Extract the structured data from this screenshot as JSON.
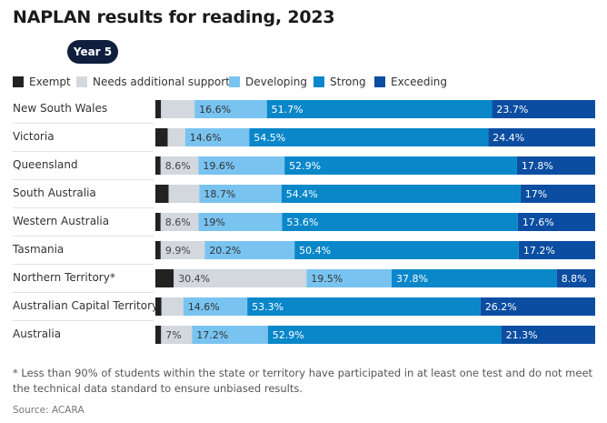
{
  "title": "NAPLAN results for reading, 2023",
  "tab": {
    "label": "Year 5"
  },
  "legend": [
    {
      "label": "Exempt",
      "color": "#222222"
    },
    {
      "label": "Needs additional support",
      "color": "#d3d7de"
    },
    {
      "label": "Developing",
      "color": "#79c3f0"
    },
    {
      "label": "Strong",
      "color": "#0a87c9"
    },
    {
      "label": "Exceeding",
      "color": "#0b4ea1"
    }
  ],
  "chart_data": {
    "type": "bar",
    "orientation": "horizontal",
    "stacked": true,
    "title": "NAPLAN results for reading, 2023",
    "categories": [
      "New South Wales",
      "Victoria",
      "Queensland",
      "South Australia",
      "Western Australia",
      "Tasmania",
      "Northern Territory*",
      "Australian Capital Territory",
      "Australia"
    ],
    "series": [
      {
        "name": "Exempt",
        "values": [
          1.3,
          2.8,
          1.2,
          3.0,
          1.2,
          1.2,
          4.2,
          1.4,
          1.3
        ]
      },
      {
        "name": "Needs additional support",
        "values": [
          7.7,
          4.0,
          8.6,
          7.0,
          8.6,
          9.9,
          30.4,
          5.0,
          7.0
        ]
      },
      {
        "name": "Developing",
        "values": [
          16.6,
          14.6,
          19.6,
          18.7,
          19.0,
          20.2,
          19.5,
          14.6,
          17.2
        ]
      },
      {
        "name": "Strong",
        "values": [
          51.7,
          54.5,
          52.9,
          54.4,
          53.6,
          50.4,
          37.8,
          53.3,
          52.9
        ]
      },
      {
        "name": "Exceeding",
        "values": [
          23.7,
          24.4,
          17.8,
          17.0,
          17.6,
          17.2,
          8.8,
          26.2,
          21.3
        ]
      }
    ],
    "labels": [
      [
        "",
        "",
        "16.6%",
        "51.7%",
        "23.7%"
      ],
      [
        "",
        "",
        "14.6%",
        "54.5%",
        "24.4%"
      ],
      [
        "",
        "8.6%",
        "19.6%",
        "52.9%",
        "17.8%"
      ],
      [
        "",
        "",
        "18.7%",
        "54.4%",
        "17%"
      ],
      [
        "",
        "8.6%",
        "19%",
        "53.6%",
        "17.6%"
      ],
      [
        "",
        "9.9%",
        "20.2%",
        "50.4%",
        "17.2%"
      ],
      [
        "",
        "30.4%",
        "19.5%",
        "37.8%",
        "8.8%"
      ],
      [
        "",
        "",
        "14.6%",
        "53.3%",
        "26.2%"
      ],
      [
        "",
        "7%",
        "17.2%",
        "52.9%",
        "21.3%"
      ]
    ],
    "xlim": [
      0,
      100
    ],
    "grid": false,
    "legend_position": "top-left"
  },
  "footnote": "* Less than 90% of students within the state or territory have participated in at least one test and do not meet the technical data standard to ensure unbiased results.",
  "source": "Source: ACARA"
}
